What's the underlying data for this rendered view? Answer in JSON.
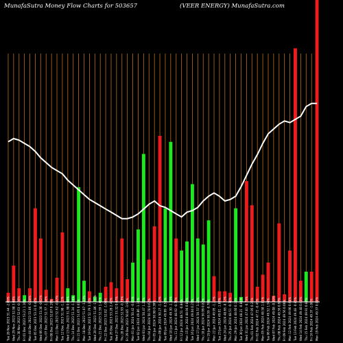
{
  "header": {
    "left_title": "MunafaSutra  Money Flow  Charts for 503657",
    "right_title": "(VEER ENERGY) MunafaSutra.com"
  },
  "colors": {
    "background": "#000000",
    "gridline": "#b8741a",
    "up": "#1ee81e",
    "down": "#ee1c1c",
    "price_line": "#ffffff",
    "axis": "#ffffff"
  },
  "chart_data": {
    "type": "bar",
    "description_series": [
      "money flow bars",
      "price line"
    ],
    "categories": [
      "Wed 28 Feb 2024 50.75 3.96%",
      "Tue 27 Feb 2024 48.81 -0.22%",
      "Mon 26 Feb 2024 48.92 -1.99%",
      "Fri 23 Feb 2024 49.91 0.15%",
      "Thu 22 Feb 2024 49.84 0.12%",
      "Wed 21 Feb 2024 49.78 -1.07%",
      "Tue 20 Feb 2024 50.32 1.92%",
      "Mon 19 Feb 2024 49.37 0.00%",
      "Fri 16 Feb 2024 49.37 -1.08%",
      "Thu 15 Feb 2024 49.91 0.87%",
      "Wed 14 Feb 2024 49.48 0.00%",
      "Tue 13 Feb 2024 49.48 -0.85%",
      "Mon 12 Feb 2024 49.90 0.68%",
      "Fri 09 Feb 2024 49.56 0.00%",
      "Thu 08 Feb 2024 49.56 0.97%",
      "Wed 07 Feb 2024 49.08 -0.89%",
      "Tue 06 Feb 2024 49.52 1.94%",
      "Mon 05 Feb 2024 48.58 1.81%",
      "Fri 02 Feb 2024 47.72 -0.49%",
      "Thu 01 Feb 2024 47.95 0.25%",
      "Wed 31 Jan 2024 47.83 -0.79%",
      "Tue 30 Jan 2024 48.21 -0.81%",
      "Mon 29 Jan 2024 48.60 0.19%",
      "Thu 25 Jan 2024 48.51 -0.30%",
      "Wed 24 Jan 2024 48.66 -0.72%",
      "Tue 23 Jan 2024 49.01 -1.87%",
      "Mon 22 Jan 2024 49.95 -1.27%",
      "Fri 19 Jan 2024 50.59 -0.78%",
      "Thu 18 Jan 2024 50.99 0.82%",
      "Wed 17 Jan 2024 50.57 3.13%",
      "Tue 16 Jan 2024 49.04 0.21%",
      "Mon 15 Jan 2024 48.94 0.88%",
      "Fri 12 Jan 2024 48.51 -0.84%",
      "Thu 11 Jan 2024 48.92 -0.78%",
      "Wed 10 Jan 2024 49.30 -1.38%",
      "Tue 09 Jan 2024 49.99 -0.57%",
      "Mon 08 Jan 2024 50.27 -1.42%",
      "Fri 05 Jan 2024 50.98 0.39%",
      "Thu 04 Jan 2024 50.78 0.62%",
      "Wed 03 Jan 2024 50.47 1.22%",
      "Tue 02 Jan 2024 49.86 -1.11%",
      "Mon 01 Jan 2024 50.42 -0.85%",
      "Fri 29 Dec 2023 50.85 -3.93%",
      "Thu 28 Dec 2023 52.93 -0.73%",
      "Wed 27 Dec 2023 53.32 0.07%",
      "Tue 26 Dec 2023 53.28 2.42%",
      "Fri 22 Dec 2023 52.02 -1.08%",
      "Thu 21 Dec 2023 52.59 1.41%",
      "Wed 20 Dec 2023 51.86 -1.76%",
      "Tue 19 Dec 2023 52.79 3.36%",
      "Mon 18 Dec 2023 51.07 -1.13%",
      "Fri 15 Dec 2023 51.65 0.61%",
      "Thu 14 Dec 2023 51.34 -1.24%",
      "Wed 13 Dec 2023 51.98 0.00%",
      "Tue 12 Dec 2023 51.98 -1.22%",
      "Mon 11 Dec 2023 52.62 -0.47%",
      "Fri 08 Dec 2023 52.87 0.19%",
      "Thu 07 Dec 2023 52.77 -1.00%",
      "Wed 06 Dec 2023 53.30 -0.02%",
      "Tue 05 Dec 2023 53.31 0.47%",
      "Mon 04 Dec 2023 53.06 -0.28%",
      "Fri 01 Dec 2023 53.21 1.10%",
      "Thu 30 Nov 2023 52.63 -0.66%",
      "Wed 29 Nov 2023 52.98 3.00%",
      "Tue 28 Nov 2023 51.44 -2.09%"
    ],
    "bars": [
      {
        "v": 0.03,
        "c": "down"
      },
      {
        "v": 0.12,
        "c": "down"
      },
      {
        "v": 0.045,
        "c": "down"
      },
      {
        "v": 0.022,
        "c": "up"
      },
      {
        "v": 0.045,
        "c": "down"
      },
      {
        "v": 0.31,
        "c": "down"
      },
      {
        "v": 0.21,
        "c": "down"
      },
      {
        "v": 0.04,
        "c": "down"
      },
      {
        "v": 0.01,
        "c": "down"
      },
      {
        "v": 0.08,
        "c": "down"
      },
      {
        "v": 0.23,
        "c": "down"
      },
      {
        "v": 0.045,
        "c": "up"
      },
      {
        "v": 0.022,
        "c": "up"
      },
      {
        "v": 0.38,
        "c": "up"
      },
      {
        "v": 0.07,
        "c": "up"
      },
      {
        "v": 0.035,
        "c": "down"
      },
      {
        "v": 0.017,
        "c": "up"
      },
      {
        "v": 0.03,
        "c": "up"
      },
      {
        "v": 0.05,
        "c": "down"
      },
      {
        "v": 0.065,
        "c": "down"
      },
      {
        "v": 0.045,
        "c": "down"
      },
      {
        "v": 0.21,
        "c": "down"
      },
      {
        "v": 0.075,
        "c": "down"
      },
      {
        "v": 0.13,
        "c": "up"
      },
      {
        "v": 0.24,
        "c": "up"
      },
      {
        "v": 0.49,
        "c": "up"
      },
      {
        "v": 0.14,
        "c": "down"
      },
      {
        "v": 0.25,
        "c": "down"
      },
      {
        "v": 0.55,
        "c": "down"
      },
      {
        "v": 0.31,
        "c": "up"
      },
      {
        "v": 0.53,
        "c": "up"
      },
      {
        "v": 0.21,
        "c": "down"
      },
      {
        "v": 0.17,
        "c": "up"
      },
      {
        "v": 0.2,
        "c": "up"
      },
      {
        "v": 0.39,
        "c": "up"
      },
      {
        "v": 0.21,
        "c": "up"
      },
      {
        "v": 0.19,
        "c": "up"
      },
      {
        "v": 0.27,
        "c": "up"
      },
      {
        "v": 0.085,
        "c": "down"
      },
      {
        "v": 0.035,
        "c": "down"
      },
      {
        "v": 0.035,
        "c": "down"
      },
      {
        "v": 0.03,
        "c": "down"
      },
      {
        "v": 0.31,
        "c": "up"
      },
      {
        "v": 0.016,
        "c": "up"
      },
      {
        "v": 0.4,
        "c": "down"
      },
      {
        "v": 0.32,
        "c": "down"
      },
      {
        "v": 0.05,
        "c": "down"
      },
      {
        "v": 0.09,
        "c": "down"
      },
      {
        "v": 0.13,
        "c": "down"
      },
      {
        "v": 0.02,
        "c": "down"
      },
      {
        "v": 0.26,
        "c": "down"
      },
      {
        "v": 0.025,
        "c": "down"
      },
      {
        "v": 0.17,
        "c": "down"
      },
      {
        "v": 0.84,
        "c": "down"
      },
      {
        "v": 0.07,
        "c": "down"
      },
      {
        "v": 0.1,
        "c": "up"
      },
      {
        "v": 0.1,
        "c": "down"
      },
      {
        "v": 1.0,
        "c": "down"
      }
    ],
    "bar_order": "chronological_left_to_right",
    "price_line": [
      58.0,
      58.2,
      58.1,
      57.9,
      57.7,
      57.4,
      57.0,
      56.7,
      56.4,
      56.2,
      56.0,
      55.6,
      55.3,
      55.0,
      54.7,
      54.4,
      54.2,
      54.0,
      53.8,
      53.6,
      53.4,
      53.2,
      53.2,
      53.3,
      53.5,
      53.8,
      54.1,
      54.3,
      54.0,
      53.9,
      53.7,
      53.5,
      53.3,
      53.6,
      53.7,
      53.9,
      54.3,
      54.6,
      54.8,
      54.6,
      54.3,
      54.4,
      54.6,
      55.2,
      55.9,
      56.6,
      57.2,
      57.9,
      58.5,
      58.8,
      59.1,
      59.3,
      59.2,
      59.4,
      59.6,
      60.2,
      60.4,
      60.4
    ],
    "price_ylim": [
      48.0,
      63.0
    ],
    "bar_ylim": [
      0,
      1.0
    ],
    "grid": true,
    "gridlines": "vertical"
  }
}
